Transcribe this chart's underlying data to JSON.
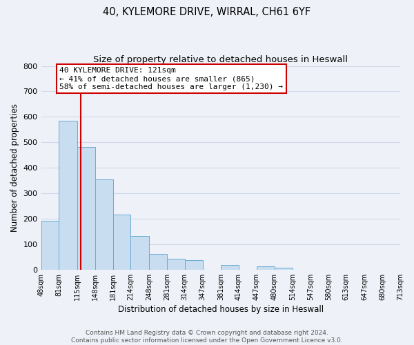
{
  "title_line1": "40, KYLEMORE DRIVE, WIRRAL, CH61 6YF",
  "title_line2": "Size of property relative to detached houses in Heswall",
  "xlabel": "Distribution of detached houses by size in Heswall",
  "ylabel": "Number of detached properties",
  "bar_left_edges": [
    48,
    81,
    115,
    148,
    181,
    214,
    248,
    281,
    314,
    347,
    381,
    414,
    447,
    480,
    514,
    547,
    580,
    613,
    647,
    680
  ],
  "bar_widths": [
    33,
    34,
    33,
    33,
    33,
    34,
    33,
    33,
    33,
    34,
    33,
    33,
    33,
    34,
    33,
    33,
    33,
    34,
    33,
    33
  ],
  "bar_heights": [
    193,
    586,
    481,
    354,
    216,
    133,
    61,
    44,
    37,
    0,
    18,
    0,
    13,
    7,
    0,
    0,
    0,
    0,
    0,
    0
  ],
  "bar_color": "#c8ddf0",
  "bar_edgecolor": "#6aaad4",
  "grid_color": "#d0d8e8",
  "background_color": "#eef2f8",
  "vline_x": 121,
  "vline_color": "#cc0000",
  "annotation_text": "40 KYLEMORE DRIVE: 121sqm\n← 41% of detached houses are smaller (865)\n58% of semi-detached houses are larger (1,230) →",
  "annotation_box_facecolor": "#ffffff",
  "annotation_box_edgecolor": "#cc0000",
  "ylim": [
    0,
    800
  ],
  "yticks": [
    0,
    100,
    200,
    300,
    400,
    500,
    600,
    700,
    800
  ],
  "tick_labels": [
    "48sqm",
    "81sqm",
    "115sqm",
    "148sqm",
    "181sqm",
    "214sqm",
    "248sqm",
    "281sqm",
    "314sqm",
    "347sqm",
    "381sqm",
    "414sqm",
    "447sqm",
    "480sqm",
    "514sqm",
    "547sqm",
    "580sqm",
    "613sqm",
    "647sqm",
    "680sqm",
    "713sqm"
  ],
  "footer_text": "Contains HM Land Registry data © Crown copyright and database right 2024.\nContains public sector information licensed under the Open Government Licence v3.0.",
  "title_fontsize": 10.5,
  "subtitle_fontsize": 9.5,
  "axis_label_fontsize": 8.5,
  "tick_fontsize": 7,
  "annotation_fontsize": 8,
  "footer_fontsize": 6.5,
  "ylabel_text": "Number of detached properties"
}
